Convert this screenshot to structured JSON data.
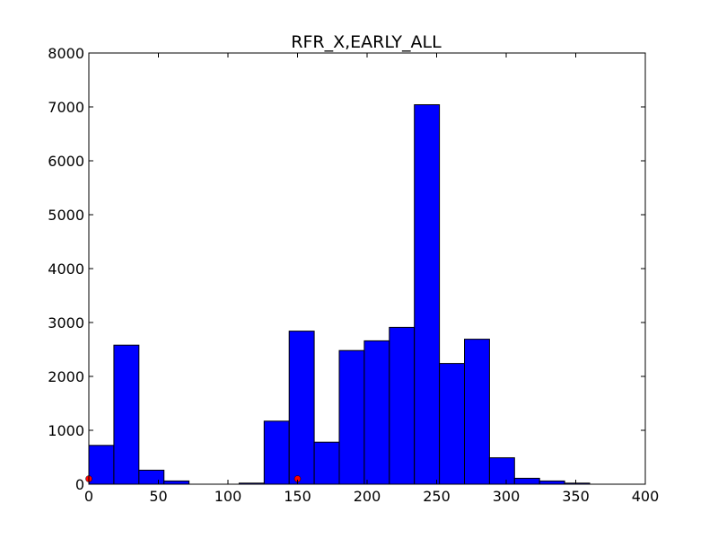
{
  "chart_data": {
    "type": "bar",
    "title": "RFR_X,EARLY_ALL",
    "xlabel": "",
    "ylabel": "",
    "xlim": [
      0,
      400
    ],
    "ylim": [
      0,
      8000
    ],
    "xticks": [
      0,
      50,
      100,
      150,
      200,
      250,
      300,
      350,
      400
    ],
    "yticks": [
      0,
      1000,
      2000,
      3000,
      4000,
      5000,
      6000,
      7000,
      8000
    ],
    "grid": false,
    "bin_width": 18,
    "bins": [
      {
        "start": 0,
        "value": 720
      },
      {
        "start": 18,
        "value": 2580
      },
      {
        "start": 36,
        "value": 260
      },
      {
        "start": 54,
        "value": 60
      },
      {
        "start": 72,
        "value": 0
      },
      {
        "start": 90,
        "value": 0
      },
      {
        "start": 108,
        "value": 20
      },
      {
        "start": 126,
        "value": 1170
      },
      {
        "start": 144,
        "value": 2840
      },
      {
        "start": 162,
        "value": 780
      },
      {
        "start": 180,
        "value": 2480
      },
      {
        "start": 198,
        "value": 2660
      },
      {
        "start": 216,
        "value": 2910
      },
      {
        "start": 234,
        "value": 7040
      },
      {
        "start": 252,
        "value": 2240
      },
      {
        "start": 270,
        "value": 2690
      },
      {
        "start": 288,
        "value": 490
      },
      {
        "start": 306,
        "value": 110
      },
      {
        "start": 324,
        "value": 60
      },
      {
        "start": 342,
        "value": 20
      }
    ],
    "markers": [
      {
        "x": 0,
        "y": 100,
        "color": "#ff0000"
      },
      {
        "x": 150,
        "y": 100,
        "color": "#ff0000"
      }
    ],
    "bar_color": "#0000ff",
    "edge_color": "#000000"
  }
}
